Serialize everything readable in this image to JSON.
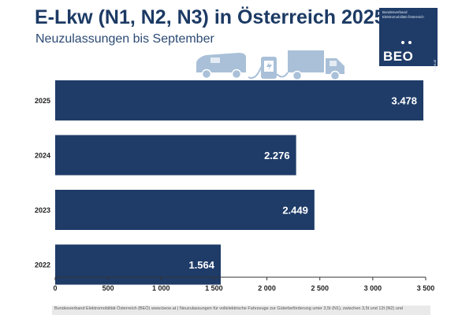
{
  "header": {
    "title": "E-Lkw (N1, N2, N3) in Österreich 2025",
    "subtitle": "Neuzulassungen bis September"
  },
  "logo": {
    "org_name": "Bundesverband Elektromobilität Österreich",
    "abbr": "BEO",
    "url": "beoe.at"
  },
  "illustration": {
    "icons": [
      "van-icon",
      "charging-station-icon",
      "truck-icon"
    ]
  },
  "colors": {
    "bar": "#1f3c68",
    "title": "#1c3a64",
    "icon": "#a9c0d8",
    "axis": "#333333"
  },
  "chart_data": {
    "type": "bar",
    "orientation": "horizontal",
    "title": "E-Lkw (N1, N2, N3) in Österreich 2025",
    "subtitle": "Neuzulassungen bis September",
    "categories": [
      "2025",
      "2024",
      "2023",
      "2022"
    ],
    "values": [
      3478,
      2276,
      2449,
      1564
    ],
    "value_labels": [
      "3.478",
      "2.276",
      "2.449",
      "1.564"
    ],
    "xlim": [
      0,
      3500
    ],
    "xticks": [
      0,
      500,
      1000,
      1500,
      2000,
      2500,
      3000,
      3500
    ],
    "xtick_labels": [
      "0",
      "500",
      "1 000",
      "1 500",
      "2 000",
      "2 500",
      "3 000",
      "3 500"
    ],
    "xlabel": "",
    "ylabel": "",
    "grid": false,
    "legend": "none"
  },
  "footer": {
    "source": "Bundesverband Elektromobilität Österreich (BEÖ) www.beoe.at | Neuzulassungen für vollelektrische Fahrzeuge zur Güterbeförderung unter 3,5t (N1), zwischen 3,5t und 12t (N2) und"
  }
}
